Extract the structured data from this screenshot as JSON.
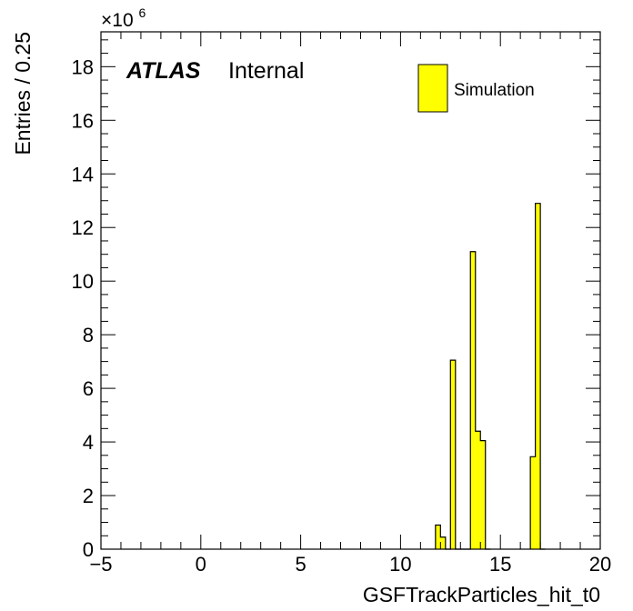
{
  "chart_data": {
    "type": "bar",
    "style": "histogram",
    "xlabel": "GSFTrackParticles_hit_t0",
    "ylabel": "Entries / 0.25",
    "y_multiplier": "×10",
    "y_multiplier_exponent": "6",
    "xlim": [
      -5,
      20
    ],
    "ylim": [
      0,
      19.3
    ],
    "bin_width": 0.25,
    "xticks": [
      -5,
      0,
      5,
      10,
      15,
      20
    ],
    "yticks": [
      0,
      2,
      4,
      6,
      8,
      10,
      12,
      14,
      16,
      18
    ],
    "series": [
      {
        "name": "Simulation",
        "color": "#ffff00",
        "bins": [
          {
            "x": 11.75,
            "y": 0.9
          },
          {
            "x": 12.0,
            "y": 0.45
          },
          {
            "x": 12.25,
            "y": 0
          },
          {
            "x": 12.5,
            "y": 7.05
          },
          {
            "x": 12.75,
            "y": 0
          },
          {
            "x": 13.0,
            "y": 0
          },
          {
            "x": 13.25,
            "y": 0
          },
          {
            "x": 13.5,
            "y": 11.1
          },
          {
            "x": 13.75,
            "y": 4.4
          },
          {
            "x": 14.0,
            "y": 4.05
          },
          {
            "x": 14.25,
            "y": 0
          },
          {
            "x": 16.5,
            "y": 3.45
          },
          {
            "x": 16.75,
            "y": 12.9
          },
          {
            "x": 17.0,
            "y": 0
          }
        ]
      }
    ],
    "legend_placement": "top-right",
    "grid": false
  },
  "labels": {
    "atlas": "ATLAS",
    "internal": "Internal"
  },
  "colors": {
    "fill": "#ffff00",
    "line": "#000000",
    "background": "#ffffff"
  }
}
